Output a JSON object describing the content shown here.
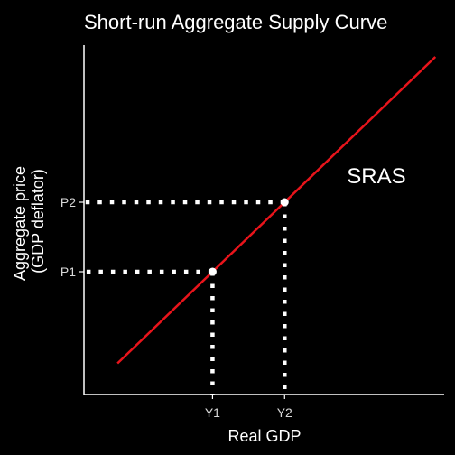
{
  "chart_data": {
    "type": "line",
    "title": "Short-run Aggregate Supply Curve",
    "xlabel": "Real GDP",
    "ylabel_lines": [
      "Aggregate price",
      "(GDP deflator)"
    ],
    "xlim": [
      0,
      10
    ],
    "ylim": [
      0,
      10
    ],
    "grid": false,
    "legend": "none",
    "background_color": "#000000",
    "text_color": "#ffffff",
    "series": [
      {
        "color": "#e8141b",
        "x": [
          0.5,
          10.2
        ],
        "y": [
          0.5,
          10.2
        ]
      }
    ],
    "x_ticks": [
      {
        "label": "Y1",
        "value": 3.4
      },
      {
        "label": "Y2",
        "value": 5.6
      }
    ],
    "y_ticks": [
      {
        "label": "P1",
        "value": 3.4
      },
      {
        "label": "P2",
        "value": 5.6
      }
    ],
    "points": [
      {
        "x": 3.4,
        "y": 3.4
      },
      {
        "x": 5.6,
        "y": 5.6
      }
    ],
    "guide_color": "#ffffff",
    "annotation": {
      "text": "SRAS",
      "x": 8.4,
      "y": 6.2
    }
  }
}
